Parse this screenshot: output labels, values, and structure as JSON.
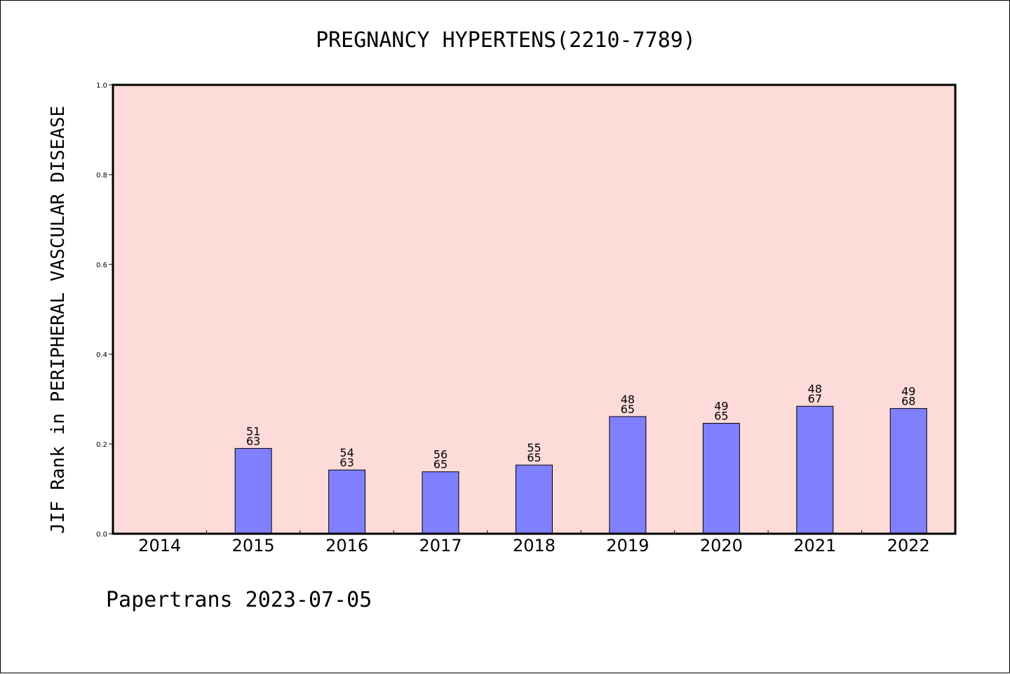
{
  "chart_data": {
    "type": "bar",
    "title": "PREGNANCY HYPERTENS(2210-7789)",
    "xlabel": "",
    "ylabel": "JIF Rank in PERIPHERAL VASCULAR DISEASE",
    "ylim": [
      0,
      1.0
    ],
    "yticks": [
      "0.0",
      "0.2",
      "0.4",
      "0.6",
      "0.8",
      "1.0"
    ],
    "categories": [
      "2014",
      "2015",
      "2016",
      "2017",
      "2018",
      "2019",
      "2020",
      "2021",
      "2022"
    ],
    "values": [
      null,
      0.19,
      0.142,
      0.138,
      0.153,
      0.261,
      0.246,
      0.284,
      0.279
    ],
    "labels_top": [
      "",
      "51",
      "54",
      "56",
      "55",
      "48",
      "49",
      "48",
      "49"
    ],
    "labels_bottom": [
      "",
      "63",
      "63",
      "65",
      "65",
      "65",
      "65",
      "67",
      "68"
    ],
    "grid": false,
    "legend": "none",
    "colors": {
      "plot_background": "#fddbd8",
      "bar_fill": "#8080ff",
      "bar_stroke": "#000000"
    }
  },
  "footer": "Papertrans 2023-07-05"
}
